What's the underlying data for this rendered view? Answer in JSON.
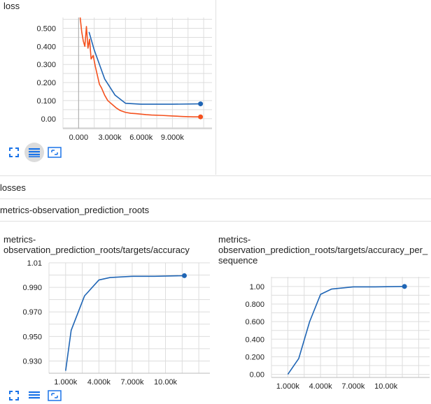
{
  "cards": {
    "loss": {
      "title": "loss",
      "chart_data": {
        "type": "line",
        "xlim": [
          -1500,
          12800
        ],
        "ylim": [
          -0.055,
          0.56
        ],
        "x_ticks": [
          0,
          3000,
          6000,
          9000
        ],
        "x_tick_labels": [
          "0.000",
          "3.000k",
          "6.000k",
          "9.000k"
        ],
        "y_ticks": [
          0,
          0.1,
          0.2,
          0.3,
          0.4,
          0.5
        ],
        "y_tick_labels": [
          "0.00",
          "0.100",
          "0.200",
          "0.300",
          "0.400",
          "0.500"
        ],
        "grid": true,
        "series": [
          {
            "color": "#1f65b5",
            "x": [
              1000,
              1500,
              2500,
              3500,
              4500,
              6000,
              9000,
              11700
            ],
            "y": [
              0.48,
              0.38,
              0.22,
              0.13,
              0.085,
              0.08,
              0.08,
              0.082
            ]
          },
          {
            "color": "#f4511e",
            "x": [
              150,
              300,
              450,
              600,
              750,
              900,
              1050,
              1200,
              1400,
              1600,
              1800,
              2000,
              2200,
              2500,
              2800,
              3200,
              3600,
              4000,
              4500,
              5000,
              5500,
              6000,
              6500,
              7000,
              8000,
              9000,
              10000,
              11000,
              11700
            ],
            "y": [
              0.56,
              0.48,
              0.43,
              0.4,
              0.51,
              0.39,
              0.44,
              0.33,
              0.35,
              0.29,
              0.24,
              0.19,
              0.17,
              0.13,
              0.1,
              0.08,
              0.06,
              0.045,
              0.035,
              0.03,
              0.028,
              0.025,
              0.022,
              0.02,
              0.018,
              0.015,
              0.012,
              0.01,
              0.01
            ]
          }
        ]
      }
    },
    "accuracy": {
      "title": "metrics-\nobservation_prediction_roots/targets/accuracy",
      "chart_data": {
        "type": "line",
        "xlim": [
          -500,
          14000
        ],
        "ylim": [
          0.92,
          1.01
        ],
        "x_ticks": [
          1000,
          4000,
          7000,
          10000
        ],
        "x_tick_labels": [
          "1.000k",
          "4.000k",
          "7.000k",
          "10.00k"
        ],
        "y_ticks": [
          0.93,
          0.95,
          0.97,
          0.99,
          1.01
        ],
        "y_tick_labels": [
          "0.930",
          "0.950",
          "0.970",
          "0.990",
          "1.01"
        ],
        "grid": true,
        "series": [
          {
            "color": "#1f65b5",
            "x": [
              1000,
              1500,
              2700,
              4000,
              5000,
              7000,
              9000,
              11700
            ],
            "y": [
              0.922,
              0.955,
              0.983,
              0.996,
              0.998,
              0.999,
              0.999,
              0.9995
            ]
          }
        ]
      }
    },
    "accuracy_per_sequence": {
      "title": "metrics-\nobservation_prediction_roots/targets/accuracy_per_\nsequence",
      "chart_data": {
        "type": "line",
        "xlim": [
          -500,
          14000
        ],
        "ylim": [
          -0.035,
          1.11
        ],
        "x_ticks": [
          1000,
          4000,
          7000,
          10000
        ],
        "x_tick_labels": [
          "1.000k",
          "4.000k",
          "7.000k",
          "10.00k"
        ],
        "y_ticks": [
          0,
          0.2,
          0.4,
          0.6,
          0.8,
          1.0
        ],
        "y_tick_labels": [
          "0.00",
          "0.200",
          "0.400",
          "0.600",
          "0.800",
          "1.00"
        ],
        "grid": true,
        "series": [
          {
            "color": "#1f65b5",
            "x": [
              1000,
              2000,
              3000,
              4000,
              5000,
              7000,
              9000,
              11700
            ],
            "y": [
              0.0,
              0.18,
              0.6,
              0.91,
              0.97,
              0.995,
              0.995,
              1.0
            ]
          }
        ]
      }
    }
  },
  "sections": {
    "losses": "losses",
    "metrics": "metrics-observation_prediction_roots"
  },
  "toolbar": {
    "icons": [
      "fullscreen-icon",
      "data-selection-icon",
      "fit-domain-icon"
    ],
    "color": "#1a73e8"
  }
}
